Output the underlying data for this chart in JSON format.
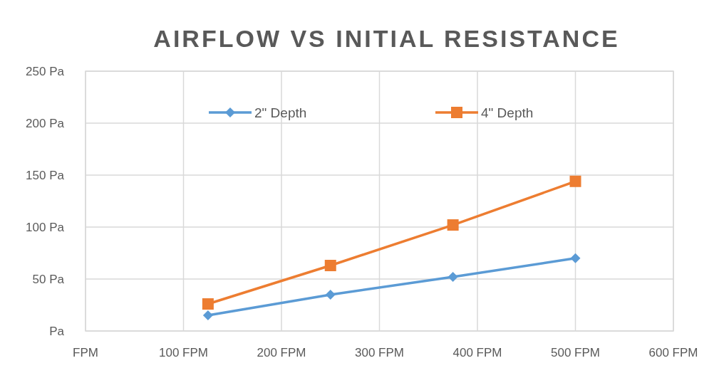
{
  "chart_data": {
    "type": "line",
    "title": "AIRFLOW VS INITIAL RESISTANCE",
    "x": [
      125,
      250,
      375,
      500
    ],
    "series": [
      {
        "name": "2\" Depth",
        "color": "#5b9bd5",
        "values": [
          15,
          35,
          52,
          70
        ],
        "marker": "diamond"
      },
      {
        "name": "4\" Depth",
        "color": "#ed7d31",
        "values": [
          26,
          63,
          102,
          144
        ],
        "marker": "square"
      }
    ],
    "xlim": [
      0,
      600
    ],
    "xticks": [
      {
        "value": 0,
        "label": "FPM"
      },
      {
        "value": 100,
        "label": "100 FPM"
      },
      {
        "value": 200,
        "label": "200 FPM"
      },
      {
        "value": 300,
        "label": "300 FPM"
      },
      {
        "value": 400,
        "label": "400 FPM"
      },
      {
        "value": 500,
        "label": "500 FPM"
      },
      {
        "value": 600,
        "label": "600 FPM"
      }
    ],
    "ylim": [
      0,
      250
    ],
    "yticks": [
      {
        "value": 0,
        "label": "Pa"
      },
      {
        "value": 50,
        "label": "50 Pa"
      },
      {
        "value": 100,
        "label": "100 Pa"
      },
      {
        "value": 150,
        "label": "150 Pa"
      },
      {
        "value": 200,
        "label": "200 Pa"
      },
      {
        "value": 250,
        "label": "250 Pa"
      }
    ],
    "grid": true,
    "legend": "top",
    "line_style": "solid"
  }
}
